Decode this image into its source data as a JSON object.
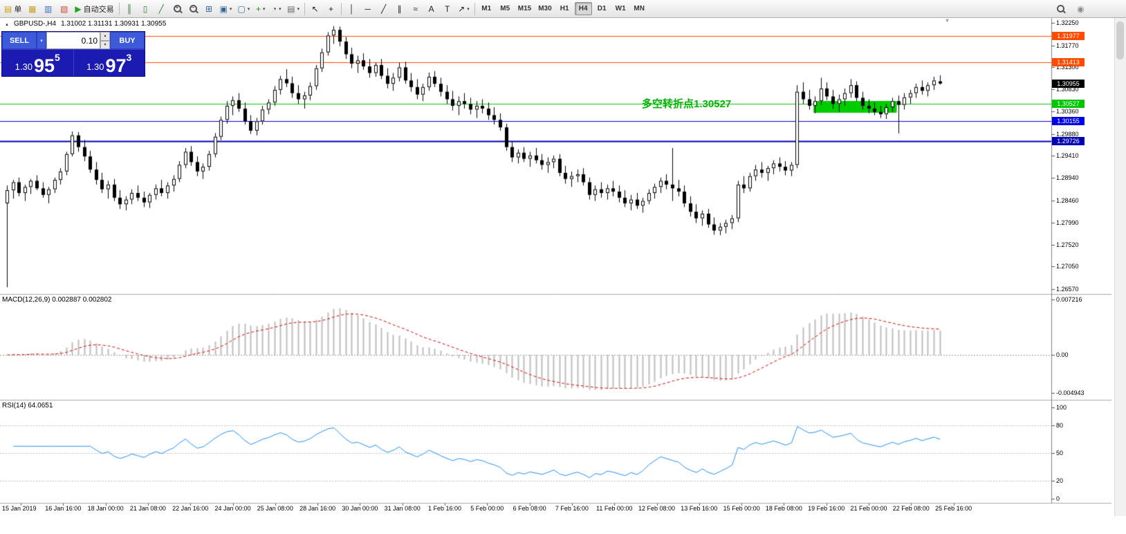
{
  "toolbar": {
    "items": [
      {
        "kind": "labelbtn",
        "name": "new-order",
        "glyph": "▤",
        "glyph_color": "#c9a21a",
        "label": "单"
      },
      {
        "kind": "icon",
        "name": "charts",
        "glyph": "▦",
        "color": "#c9a227"
      },
      {
        "kind": "icon",
        "name": "market-watch",
        "glyph": "▥",
        "color": "#3a6bc9"
      },
      {
        "kind": "icon",
        "name": "navigator",
        "glyph": "▧",
        "color": "#c94a3a"
      },
      {
        "kind": "labelbtn",
        "name": "autotrading",
        "glyph": "▶",
        "glyph_color": "#18a818",
        "label": "自动交易"
      },
      {
        "kind": "sep"
      },
      {
        "kind": "icon",
        "name": "chart-bars",
        "glyph": "║",
        "color": "#2e7d32"
      },
      {
        "kind": "icon",
        "name": "chart-candles",
        "glyph": "▯",
        "color": "#2e7d32"
      },
      {
        "kind": "icon",
        "name": "chart-line",
        "glyph": "╱",
        "color": "#2e7d32"
      },
      {
        "kind": "mag",
        "name": "zoom-in",
        "sign": "+"
      },
      {
        "kind": "mag",
        "name": "zoom-out",
        "sign": "−"
      },
      {
        "kind": "icon",
        "name": "tile-windows",
        "glyph": "⊞",
        "color": "#336699"
      },
      {
        "kind": "dd",
        "name": "auto-arrange",
        "glyph": "▣",
        "color": "#336699"
      },
      {
        "kind": "dd",
        "name": "cycle-profiles",
        "glyph": "▢",
        "color": "#336699"
      },
      {
        "kind": "dd",
        "name": "indicators",
        "glyph": "+",
        "color": "#0a9a0a"
      },
      {
        "kind": "dd",
        "name": "periods",
        "glyph": "◔",
        "color": "#444444"
      },
      {
        "kind": "dd",
        "name": "templates",
        "glyph": "▤",
        "color": "#666666"
      },
      {
        "kind": "sep"
      },
      {
        "kind": "icon",
        "name": "cursor",
        "glyph": "↖",
        "color": "#222222"
      },
      {
        "kind": "icon",
        "name": "crosshair",
        "glyph": "+",
        "color": "#222222"
      },
      {
        "kind": "sep"
      },
      {
        "kind": "icon",
        "name": "vertical-line",
        "glyph": "│",
        "color": "#222222"
      },
      {
        "kind": "icon",
        "name": "horizontal-line",
        "glyph": "─",
        "color": "#222222"
      },
      {
        "kind": "icon",
        "name": "trend-line",
        "glyph": "╱",
        "color": "#222222"
      },
      {
        "kind": "icon",
        "name": "equidistant-channel",
        "glyph": "∥",
        "color": "#222222"
      },
      {
        "kind": "icon",
        "name": "fibonacci",
        "glyph": "≈",
        "color": "#222222"
      },
      {
        "kind": "icon",
        "name": "text",
        "glyph": "A",
        "color": "#222222"
      },
      {
        "kind": "icon",
        "name": "text-label",
        "glyph": "T",
        "color": "#222222"
      },
      {
        "kind": "dd",
        "name": "arrows",
        "glyph": "↗",
        "color": "#222222"
      },
      {
        "kind": "sep"
      }
    ],
    "timeframes": [
      "M1",
      "M5",
      "M15",
      "M30",
      "H1",
      "H4",
      "D1",
      "W1",
      "MN"
    ],
    "active_timeframe": "H4",
    "right_items": [
      {
        "kind": "mag",
        "name": "search",
        "sign": ""
      },
      {
        "kind": "icon",
        "name": "community",
        "glyph": "◉",
        "color": "#8a8a8a"
      }
    ]
  },
  "chart_header": {
    "marker": "▲",
    "symbol": "GBPUSD-,H4",
    "ohlc": "1.31002 1.31131 1.30931 1.30955"
  },
  "trade_panel": {
    "sell_label": "SELL",
    "buy_label": "BUY",
    "volume": "0.10",
    "sell_price": {
      "prefix": "1.30",
      "main": "95",
      "sup": "5"
    },
    "buy_price": {
      "prefix": "1.30",
      "main": "97",
      "sup": "3"
    }
  },
  "annotation": {
    "text": "多空转折点1.30527",
    "color": "#00b400"
  },
  "price_tags": [
    {
      "value": "1.31977",
      "color": "#ff4a00"
    },
    {
      "value": "1.31413",
      "color": "#ff4a00"
    },
    {
      "value": "1.30955",
      "color": "#000000"
    },
    {
      "value": "1.30527",
      "color": "#00c800"
    },
    {
      "value": "1.30155",
      "color": "#0000e8"
    },
    {
      "value": "1.29726",
      "color": "#0000b4"
    }
  ],
  "indicators": {
    "macd_label": "MACD(12,26,9) 0.002887 0.002802",
    "rsi_label": "RSI(14) 64.0651",
    "macd_axis": [
      "0.007216",
      "0.00",
      "-0.004943"
    ],
    "rsi_axis": [
      "100",
      "80",
      "50",
      "20",
      "0"
    ],
    "rsi_levels": [
      80,
      50,
      20
    ]
  },
  "chart_data": {
    "type": "candlestick",
    "symbol": "GBPUSD-",
    "timeframe": "H4",
    "ylim": [
      1.2657,
      1.3225
    ],
    "y_ticks": [
      "1.32250",
      "1.31770",
      "1.31300",
      "1.30830",
      "1.30360",
      "1.29880",
      "1.29410",
      "1.28940",
      "1.28460",
      "1.27990",
      "1.27520",
      "1.27050",
      "1.26570"
    ],
    "x_labels": [
      "15 Jan 2019",
      "16 Jan 16:00",
      "18 Jan 00:00",
      "21 Jan 08:00",
      "22 Jan 16:00",
      "24 Jan 00:00",
      "25 Jan 08:00",
      "28 Jan 16:00",
      "30 Jan 00:00",
      "31 Jan 08:00",
      "1 Feb 16:00",
      "5 Feb 00:00",
      "6 Feb 08:00",
      "7 Feb 16:00",
      "11 Feb 00:00",
      "12 Feb 08:00",
      "13 Feb 16:00",
      "15 Feb 00:00",
      "18 Feb 08:00",
      "19 Feb 16:00",
      "21 Feb 00:00",
      "22 Feb 08:00",
      "25 Feb 16:00"
    ],
    "hlines": [
      {
        "price": 1.31977,
        "color": "#ff4a00",
        "width": 1
      },
      {
        "price": 1.31413,
        "color": "#ff4a00",
        "width": 1
      },
      {
        "price": 1.30527,
        "color": "#00c800",
        "width": 1
      },
      {
        "price": 1.30155,
        "color": "#0000e8",
        "width": 1
      },
      {
        "price": 1.29726,
        "color": "#0000b4",
        "width": 2
      }
    ],
    "highlight_rect": {
      "bar_start": 136,
      "bar_end": 150,
      "price_top": 1.30583,
      "price_bottom": 1.30332,
      "color": "#00cc00"
    },
    "colors": {
      "up": "#ffffff",
      "down": "#000000",
      "border": "#000000",
      "macd_hist": "#bdbdbd",
      "macd_signal": "#e00000",
      "rsi_line": "#1e90ff"
    },
    "macd": {
      "params": [
        12,
        26,
        9
      ],
      "values": [
        0.002887,
        0.002802
      ],
      "range": [
        -0.004943,
        0.007216
      ]
    },
    "rsi": {
      "period": 14,
      "value": 64.0651,
      "range": [
        0,
        100
      ]
    },
    "candles": [
      [
        1.284,
        1.2878,
        1.2661,
        1.2868
      ],
      [
        1.2868,
        1.289,
        1.285,
        1.2885
      ],
      [
        1.2885,
        1.2895,
        1.2855,
        1.2862
      ],
      [
        1.2862,
        1.288,
        1.2845,
        1.2875
      ],
      [
        1.2875,
        1.2892,
        1.286,
        1.2888
      ],
      [
        1.2888,
        1.29,
        1.2868,
        1.2872
      ],
      [
        1.2872,
        1.2885,
        1.2852,
        1.2858
      ],
      [
        1.2858,
        1.2875,
        1.284,
        1.287
      ],
      [
        1.287,
        1.2895,
        1.2862,
        1.289
      ],
      [
        1.289,
        1.2915,
        1.288,
        1.2908
      ],
      [
        1.2908,
        1.295,
        1.29,
        1.2945
      ],
      [
        1.2945,
        1.2993,
        1.294,
        1.2985
      ],
      [
        1.2985,
        1.2992,
        1.295,
        1.296
      ],
      [
        1.296,
        1.2975,
        1.293,
        1.294
      ],
      [
        1.294,
        1.2952,
        1.2905,
        1.2912
      ],
      [
        1.2912,
        1.2928,
        1.288,
        1.289
      ],
      [
        1.289,
        1.2905,
        1.2862,
        1.287
      ],
      [
        1.287,
        1.2888,
        1.285,
        1.288
      ],
      [
        1.288,
        1.2892,
        1.2845,
        1.2852
      ],
      [
        1.2852,
        1.2868,
        1.2828,
        1.2838
      ],
      [
        1.2838,
        1.2855,
        1.2825,
        1.2848
      ],
      [
        1.2848,
        1.287,
        1.2838,
        1.2862
      ],
      [
        1.2862,
        1.2878,
        1.2845,
        1.2852
      ],
      [
        1.2852,
        1.2865,
        1.2832,
        1.2842
      ],
      [
        1.2842,
        1.2862,
        1.283,
        1.2858
      ],
      [
        1.2858,
        1.288,
        1.2848,
        1.2872
      ],
      [
        1.2872,
        1.289,
        1.2855,
        1.2862
      ],
      [
        1.2862,
        1.2885,
        1.285,
        1.2878
      ],
      [
        1.2878,
        1.29,
        1.2865,
        1.2892
      ],
      [
        1.2892,
        1.293,
        1.2885,
        1.2922
      ],
      [
        1.2922,
        1.2958,
        1.2915,
        1.295
      ],
      [
        1.295,
        1.2962,
        1.292,
        1.2928
      ],
      [
        1.2928,
        1.294,
        1.2898,
        1.2908
      ],
      [
        1.2908,
        1.2925,
        1.2892,
        1.2918
      ],
      [
        1.2918,
        1.2952,
        1.291,
        1.2945
      ],
      [
        1.2945,
        1.299,
        1.2938,
        1.2982
      ],
      [
        1.2982,
        1.3025,
        1.2975,
        1.3018
      ],
      [
        1.3018,
        1.3058,
        1.301,
        1.3048
      ],
      [
        1.3048,
        1.3068,
        1.3028,
        1.306
      ],
      [
        1.306,
        1.3075,
        1.3035,
        1.3042
      ],
      [
        1.3042,
        1.3055,
        1.3008,
        1.3015
      ],
      [
        1.3015,
        1.3028,
        1.2988,
        1.2995
      ],
      [
        1.2995,
        1.3022,
        1.2985,
        1.3015
      ],
      [
        1.3015,
        1.3048,
        1.3008,
        1.304
      ],
      [
        1.304,
        1.3062,
        1.303,
        1.3055
      ],
      [
        1.3055,
        1.309,
        1.3048,
        1.3082
      ],
      [
        1.3082,
        1.3112,
        1.3072,
        1.3105
      ],
      [
        1.3105,
        1.3126,
        1.3088,
        1.3096
      ],
      [
        1.3096,
        1.311,
        1.3065,
        1.3075
      ],
      [
        1.3075,
        1.3092,
        1.3052,
        1.3062
      ],
      [
        1.3062,
        1.3078,
        1.3042,
        1.307
      ],
      [
        1.307,
        1.3098,
        1.306,
        1.309
      ],
      [
        1.309,
        1.3135,
        1.3082,
        1.3128
      ],
      [
        1.3128,
        1.317,
        1.312,
        1.3162
      ],
      [
        1.3162,
        1.3205,
        1.3155,
        1.3198
      ],
      [
        1.3198,
        1.3218,
        1.318,
        1.321
      ],
      [
        1.321,
        1.3217,
        1.3175,
        1.3185
      ],
      [
        1.3185,
        1.3195,
        1.3148,
        1.3158
      ],
      [
        1.3158,
        1.3172,
        1.3128,
        1.3138
      ],
      [
        1.3138,
        1.3155,
        1.3118,
        1.3145
      ],
      [
        1.3145,
        1.316,
        1.3125,
        1.3132
      ],
      [
        1.3132,
        1.3148,
        1.3108,
        1.3118
      ],
      [
        1.3118,
        1.314,
        1.311,
        1.3135
      ],
      [
        1.3135,
        1.3148,
        1.3105,
        1.3112
      ],
      [
        1.3112,
        1.3128,
        1.3085,
        1.3095
      ],
      [
        1.3095,
        1.3118,
        1.308,
        1.3108
      ],
      [
        1.3108,
        1.314,
        1.31,
        1.313
      ],
      [
        1.313,
        1.3142,
        1.3095,
        1.3102
      ],
      [
        1.3102,
        1.3118,
        1.3078,
        1.3088
      ],
      [
        1.3088,
        1.3105,
        1.3062,
        1.3072
      ],
      [
        1.3072,
        1.3095,
        1.3058,
        1.3088
      ],
      [
        1.3088,
        1.3119,
        1.308,
        1.311
      ],
      [
        1.311,
        1.3122,
        1.3088,
        1.3095
      ],
      [
        1.3095,
        1.3108,
        1.3068,
        1.3078
      ],
      [
        1.3078,
        1.3092,
        1.3052,
        1.3062
      ],
      [
        1.3062,
        1.308,
        1.3038,
        1.3048
      ],
      [
        1.3048,
        1.3068,
        1.3028,
        1.3058
      ],
      [
        1.3058,
        1.3075,
        1.3042,
        1.3052
      ],
      [
        1.3052,
        1.3065,
        1.303,
        1.304
      ],
      [
        1.304,
        1.3058,
        1.3022,
        1.3048
      ],
      [
        1.3048,
        1.3062,
        1.3032,
        1.3042
      ],
      [
        1.3042,
        1.3055,
        1.3018,
        1.3028
      ],
      [
        1.3028,
        1.3045,
        1.3008,
        1.3018
      ],
      [
        1.3018,
        1.3032,
        1.2995,
        1.3002
      ],
      [
        1.3002,
        1.301,
        1.2952,
        1.296
      ],
      [
        1.296,
        1.2972,
        1.2928,
        1.2938
      ],
      [
        1.2938,
        1.2955,
        1.2925,
        1.2948
      ],
      [
        1.2948,
        1.296,
        1.2928,
        1.2935
      ],
      [
        1.2935,
        1.295,
        1.2918,
        1.2942
      ],
      [
        1.2942,
        1.2958,
        1.2925,
        1.2932
      ],
      [
        1.2932,
        1.2945,
        1.2912,
        1.2922
      ],
      [
        1.2922,
        1.2938,
        1.2905,
        1.2928
      ],
      [
        1.2928,
        1.2942,
        1.2915,
        1.2935
      ],
      [
        1.2935,
        1.2945,
        1.2898,
        1.2905
      ],
      [
        1.2905,
        1.292,
        1.2882,
        1.2892
      ],
      [
        1.2892,
        1.2908,
        1.2875,
        1.2898
      ],
      [
        1.2898,
        1.2912,
        1.2885,
        1.2902
      ],
      [
        1.2902,
        1.2915,
        1.2878,
        1.2885
      ],
      [
        1.2885,
        1.2895,
        1.2848,
        1.2858
      ],
      [
        1.2858,
        1.2878,
        1.2845,
        1.287
      ],
      [
        1.287,
        1.2885,
        1.2852,
        1.2862
      ],
      [
        1.2862,
        1.288,
        1.2848,
        1.2872
      ],
      [
        1.2872,
        1.2888,
        1.2855,
        1.2865
      ],
      [
        1.2865,
        1.2878,
        1.2842,
        1.2852
      ],
      [
        1.2852,
        1.2868,
        1.2832,
        1.284
      ],
      [
        1.284,
        1.2858,
        1.2825,
        1.2848
      ],
      [
        1.2848,
        1.2862,
        1.2828,
        1.2835
      ],
      [
        1.2835,
        1.2852,
        1.282,
        1.2845
      ],
      [
        1.2845,
        1.287,
        1.2838,
        1.2862
      ],
      [
        1.2862,
        1.2882,
        1.285,
        1.2875
      ],
      [
        1.2875,
        1.2895,
        1.2862,
        1.2888
      ],
      [
        1.2888,
        1.2902,
        1.287,
        1.288
      ],
      [
        1.288,
        1.2958,
        1.2845,
        1.2872
      ],
      [
        1.2872,
        1.289,
        1.2855,
        1.2865
      ],
      [
        1.2865,
        1.2878,
        1.2832,
        1.284
      ],
      [
        1.284,
        1.2855,
        1.2812,
        1.2822
      ],
      [
        1.2822,
        1.2838,
        1.2798,
        1.2808
      ],
      [
        1.2808,
        1.2825,
        1.2792,
        1.2818
      ],
      [
        1.2818,
        1.2828,
        1.2788,
        1.2795
      ],
      [
        1.2795,
        1.281,
        1.2773,
        1.2782
      ],
      [
        1.2782,
        1.2798,
        1.2772,
        1.279
      ],
      [
        1.279,
        1.2805,
        1.2776,
        1.2798
      ],
      [
        1.2798,
        1.2815,
        1.2785,
        1.2808
      ],
      [
        1.2808,
        1.2888,
        1.28,
        1.288
      ],
      [
        1.288,
        1.2898,
        1.2862,
        1.2872
      ],
      [
        1.2872,
        1.2905,
        1.2865,
        1.2898
      ],
      [
        1.2898,
        1.2922,
        1.2888,
        1.2912
      ],
      [
        1.2912,
        1.2928,
        1.2895,
        1.2905
      ],
      [
        1.2905,
        1.292,
        1.2888,
        1.2915
      ],
      [
        1.2915,
        1.2932,
        1.2902,
        1.2925
      ],
      [
        1.2925,
        1.2938,
        1.2908,
        1.2918
      ],
      [
        1.2918,
        1.293,
        1.29,
        1.291
      ],
      [
        1.291,
        1.2928,
        1.2898,
        1.2922
      ],
      [
        1.2922,
        1.3092,
        1.2915,
        1.3078
      ],
      [
        1.3078,
        1.3098,
        1.3052,
        1.3062
      ],
      [
        1.3062,
        1.3082,
        1.304,
        1.3048
      ],
      [
        1.3048,
        1.3068,
        1.3032,
        1.3058
      ],
      [
        1.3058,
        1.3108,
        1.305,
        1.3085
      ],
      [
        1.3085,
        1.3098,
        1.306,
        1.3068
      ],
      [
        1.3068,
        1.3082,
        1.3042,
        1.3052
      ],
      [
        1.3052,
        1.3072,
        1.3035,
        1.3062
      ],
      [
        1.3062,
        1.3085,
        1.3048,
        1.3075
      ],
      [
        1.3075,
        1.3105,
        1.3065,
        1.3092
      ],
      [
        1.3092,
        1.31,
        1.3058,
        1.3065
      ],
      [
        1.3065,
        1.3078,
        1.304,
        1.3048
      ],
      [
        1.3048,
        1.3062,
        1.3032,
        1.3042
      ],
      [
        1.3042,
        1.3055,
        1.3028,
        1.3035
      ],
      [
        1.3035,
        1.3048,
        1.3022,
        1.303
      ],
      [
        1.303,
        1.3052,
        1.302,
        1.3045
      ],
      [
        1.3045,
        1.3065,
        1.3035,
        1.3058
      ],
      [
        1.3058,
        1.307,
        1.2989,
        1.305
      ],
      [
        1.305,
        1.3075,
        1.304,
        1.3066
      ],
      [
        1.3066,
        1.3082,
        1.3052,
        1.3075
      ],
      [
        1.3075,
        1.3095,
        1.3065,
        1.3088
      ],
      [
        1.3088,
        1.3102,
        1.3072,
        1.308
      ],
      [
        1.308,
        1.3098,
        1.3068,
        1.3092
      ],
      [
        1.3092,
        1.311,
        1.3082,
        1.3102
      ],
      [
        1.31002,
        1.31131,
        1.30931,
        1.30955
      ]
    ]
  }
}
